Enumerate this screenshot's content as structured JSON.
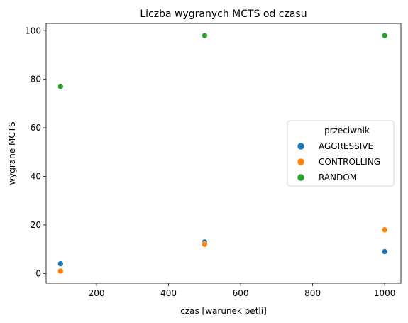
{
  "chart_data": {
    "type": "scatter",
    "title": "Liczba wygranych MCTS od czasu",
    "xlabel": "czas [warunek petli]",
    "ylabel": "wygrane MCTS",
    "xlim": [
      60,
      1045
    ],
    "ylim": [
      -4,
      103
    ],
    "xticks": [
      200,
      400,
      600,
      800,
      1000
    ],
    "yticks": [
      0,
      20,
      40,
      60,
      80,
      100
    ],
    "grid": false,
    "legend": {
      "title": "przeciwnik",
      "placement": "center-right"
    },
    "series": [
      {
        "name": "AGGRESSIVE",
        "color": "#1f77b4",
        "x": [
          100,
          500,
          1000
        ],
        "y": [
          4,
          13,
          9
        ]
      },
      {
        "name": "CONTROLLING",
        "color": "#ff7f0e",
        "x": [
          100,
          500,
          1000
        ],
        "y": [
          1,
          12,
          18
        ]
      },
      {
        "name": "RANDOM",
        "color": "#2ca02c",
        "x": [
          100,
          500,
          1000
        ],
        "y": [
          77,
          98,
          98
        ]
      }
    ]
  }
}
